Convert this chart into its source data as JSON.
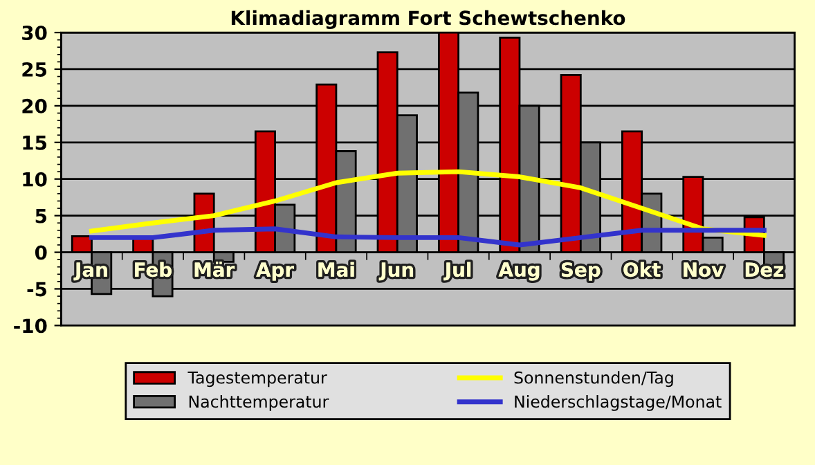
{
  "chart_data": {
    "type": "bar",
    "title": "Klimadiagramm Fort Schewtschenko",
    "categories": [
      "Jan",
      "Feb",
      "Mär",
      "Apr",
      "Mai",
      "Jun",
      "Jul",
      "Aug",
      "Sep",
      "Okt",
      "Nov",
      "Dez"
    ],
    "series": [
      {
        "name": "Tagestemperatur",
        "color": "#cc0000",
        "values": [
          2.2,
          2.2,
          8,
          16.5,
          22.9,
          27.3,
          30,
          29.3,
          24.2,
          16.5,
          10.3,
          4.8
        ]
      },
      {
        "name": "Nachttemperatur",
        "color": "#707070",
        "values": [
          -5.7,
          -6,
          -1.3,
          6.5,
          13.8,
          18.7,
          21.8,
          20,
          15,
          8,
          2,
          -2.6
        ]
      },
      {
        "name": "Sonnenstunden/Tag",
        "type": "line",
        "color": "#ffff00",
        "values": [
          2.9,
          4,
          5,
          7,
          9.5,
          10.8,
          11,
          10.3,
          8.8,
          6,
          3.2,
          2.3
        ]
      },
      {
        "name": "Niederschlagstage/Monat",
        "type": "line",
        "color": "#3333cc",
        "values": [
          2,
          2,
          3,
          3.2,
          2.1,
          2,
          2,
          1,
          2,
          3,
          3,
          3
        ]
      }
    ],
    "ylim": [
      -10,
      30
    ],
    "yticks": [
      -10,
      -5,
      0,
      5,
      10,
      15,
      20,
      25,
      30
    ],
    "grid": "y",
    "legend": "bottom"
  }
}
